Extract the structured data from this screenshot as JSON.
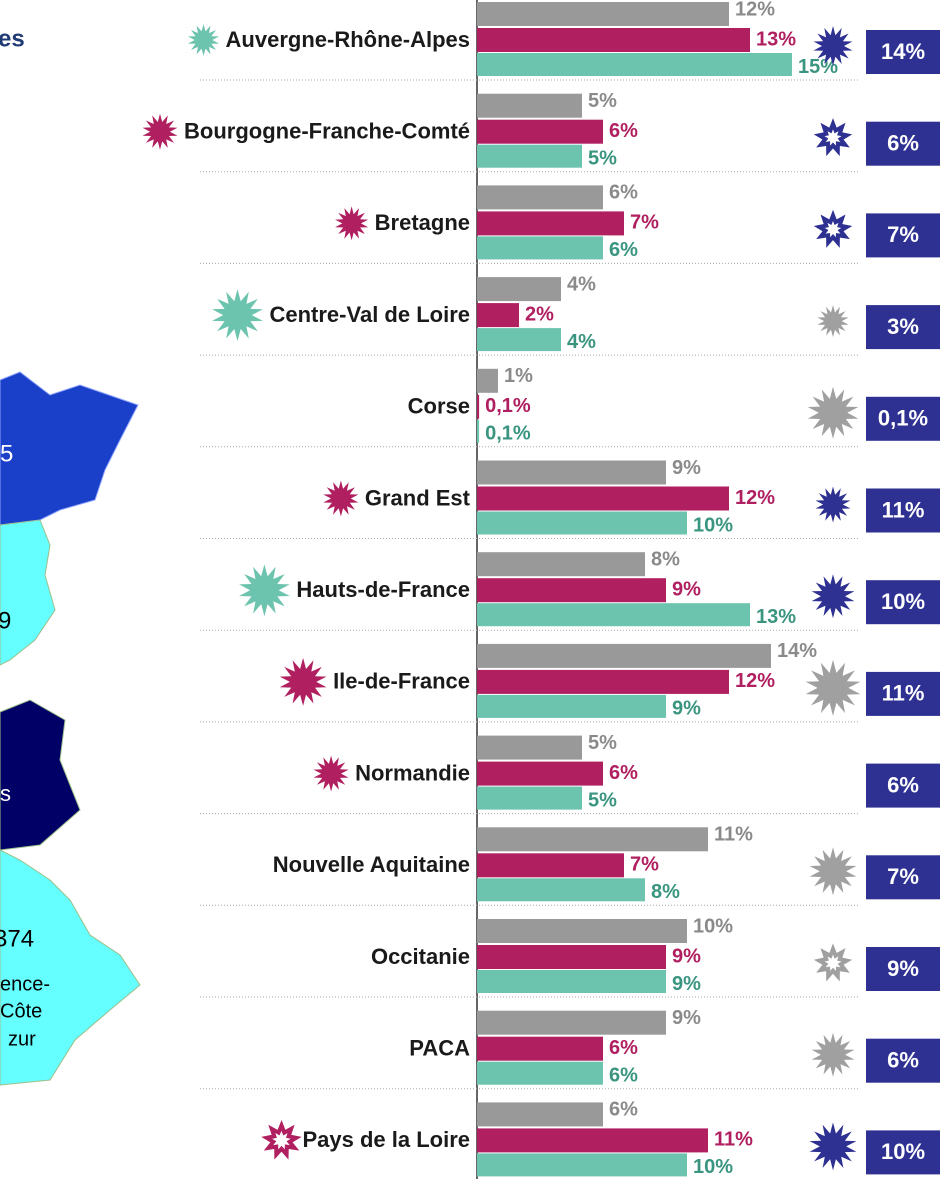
{
  "chart_data": {
    "type": "bar",
    "heading": "es",
    "categories": [
      "Auvergne-Rhône-Alpes",
      "Bourgogne-Franche-Comté",
      "Bretagne",
      "Centre-Val de Loire",
      "Corse",
      "Grand Est",
      "Hauts-de-France",
      "Ile-de-France",
      "Normandie",
      "Nouvelle Aquitaine",
      "Occitanie",
      "PACA",
      "Pays de la Loire"
    ],
    "xlim": [
      0,
      15
    ],
    "series": [
      {
        "color": "#999999",
        "label_color": "#8a8a8a",
        "values": [
          12,
          5,
          6,
          4,
          1,
          9,
          8,
          14,
          5,
          11,
          10,
          9,
          6
        ],
        "value_labels": [
          "12%",
          "5%",
          "6%",
          "4%",
          "1%",
          "9%",
          "8%",
          "14%",
          "5%",
          "11%",
          "10%",
          "9%",
          "6%"
        ]
      },
      {
        "color": "#b01f5f",
        "label_color": "#b01f5f",
        "values": [
          13,
          6,
          7,
          2,
          0.1,
          12,
          9,
          12,
          6,
          7,
          9,
          6,
          11
        ],
        "value_labels": [
          "13%",
          "6%",
          "7%",
          "2%",
          "0,1%",
          "12%",
          "9%",
          "12%",
          "6%",
          "7%",
          "9%",
          "6%",
          "11%"
        ]
      },
      {
        "color": "#6cc3ae",
        "label_color": "#3a9580",
        "values": [
          15,
          5,
          6,
          4,
          0.1,
          10,
          13,
          9,
          5,
          8,
          9,
          6,
          10
        ],
        "value_labels": [
          "15%",
          "5%",
          "6%",
          "4%",
          "0,1%",
          "10%",
          "13%",
          "9%",
          "5%",
          "8%",
          "9%",
          "6%",
          "10%"
        ]
      }
    ],
    "totals": {
      "color": "#2e3192",
      "values": [
        14,
        6,
        7,
        3,
        0.1,
        11,
        10,
        11,
        6,
        7,
        9,
        6,
        10
      ],
      "value_labels": [
        "14%",
        "6%",
        "7%",
        "3%",
        "0,1%",
        "11%",
        "10%",
        "11%",
        "6%",
        "7%",
        "9%",
        "6%",
        "10%"
      ]
    },
    "map_labels": [
      "5",
      "9",
      "s",
      "374",
      "ence-",
      "Côte",
      "zur"
    ]
  }
}
